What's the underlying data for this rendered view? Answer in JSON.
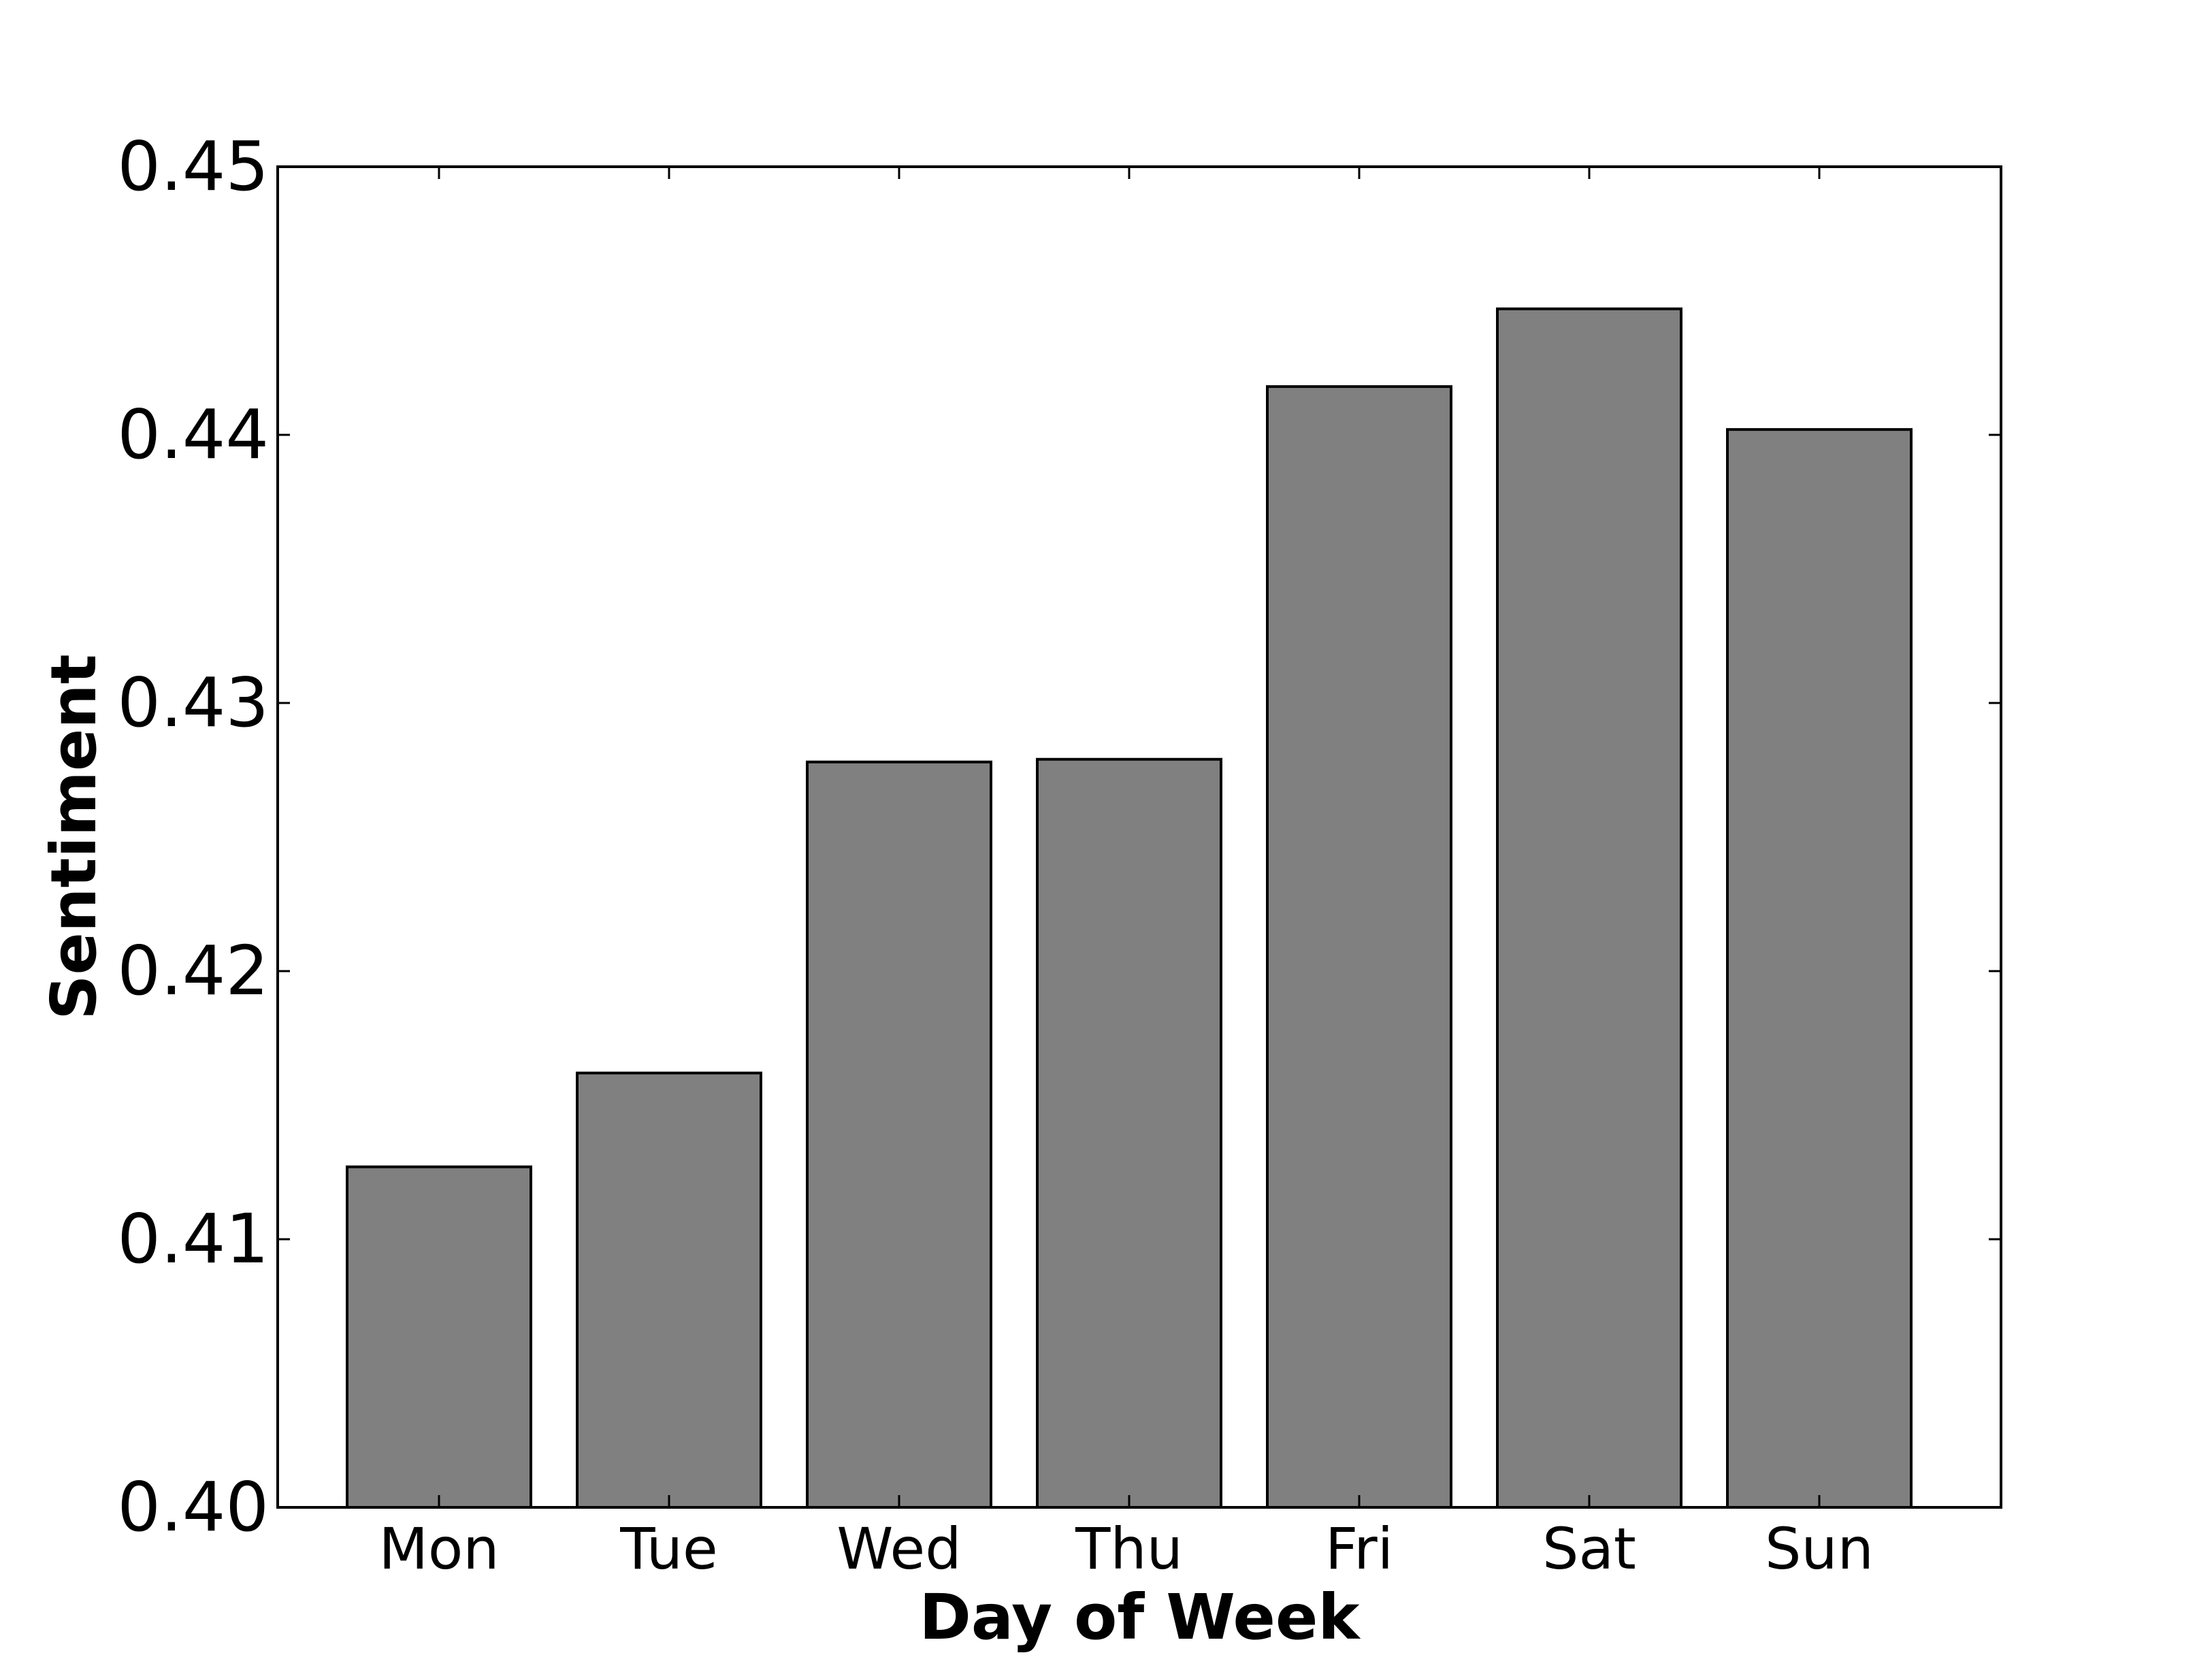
{
  "chart_data": {
    "type": "bar",
    "title": "",
    "xlabel": "Day of Week",
    "ylabel": "Sentiment",
    "categories": [
      "Mon",
      "Tue",
      "Wed",
      "Thu",
      "Fri",
      "Sat",
      "Sun"
    ],
    "values": [
      0.4127,
      0.4162,
      0.4278,
      0.4279,
      0.4418,
      0.4447,
      0.4402
    ],
    "ylim": [
      0.4,
      0.45
    ],
    "yticks": [
      "0.40",
      "0.41",
      "0.42",
      "0.43",
      "0.44",
      "0.45"
    ],
    "grid": false,
    "legend": "none",
    "colors": {
      "bar_fill": "#808080",
      "bar_edge": "#000000",
      "axes": "#000000",
      "background": "#ffffff"
    }
  }
}
